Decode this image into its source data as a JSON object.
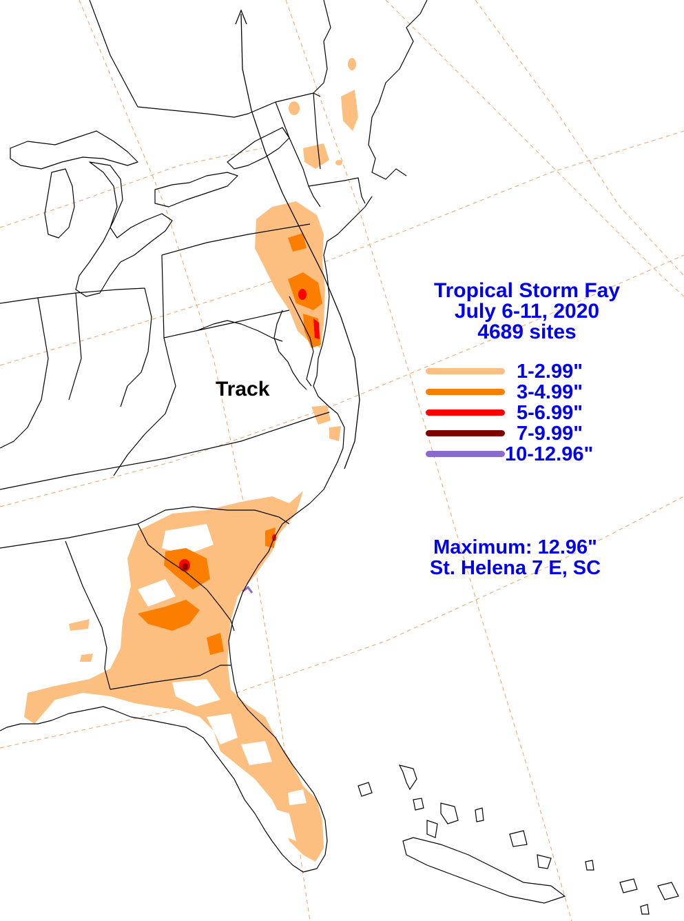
{
  "title": {
    "line1": "Tropical Storm Fay",
    "line2": "July 6-11, 2020",
    "line3": "4689 sites"
  },
  "legend": [
    {
      "label": "1-2.99\"",
      "color": "#fdbf7f"
    },
    {
      "label": "3-4.99\"",
      "color": "#fc7e00"
    },
    {
      "label": "5-6.99\"",
      "color": "#fd0000"
    },
    {
      "label": "7-9.99\"",
      "color": "#7f0000"
    },
    {
      "label": "10-12.96\"",
      "color": "#8a6ad0"
    }
  ],
  "maximum": {
    "line1": "Maximum: 12.96\"",
    "line2": "St. Helena 7 E, SC"
  },
  "track_label": "Track",
  "colors": {
    "rain_1_3": "#fdbf7f",
    "rain_3_5": "#fc7e00",
    "rain_5_7": "#fd0000",
    "rain_7_10": "#7f0000",
    "rain_10_plus": "#8a6ad0",
    "text": "#0000ee",
    "gridline": "#f5a060",
    "boundary": "#000000"
  }
}
